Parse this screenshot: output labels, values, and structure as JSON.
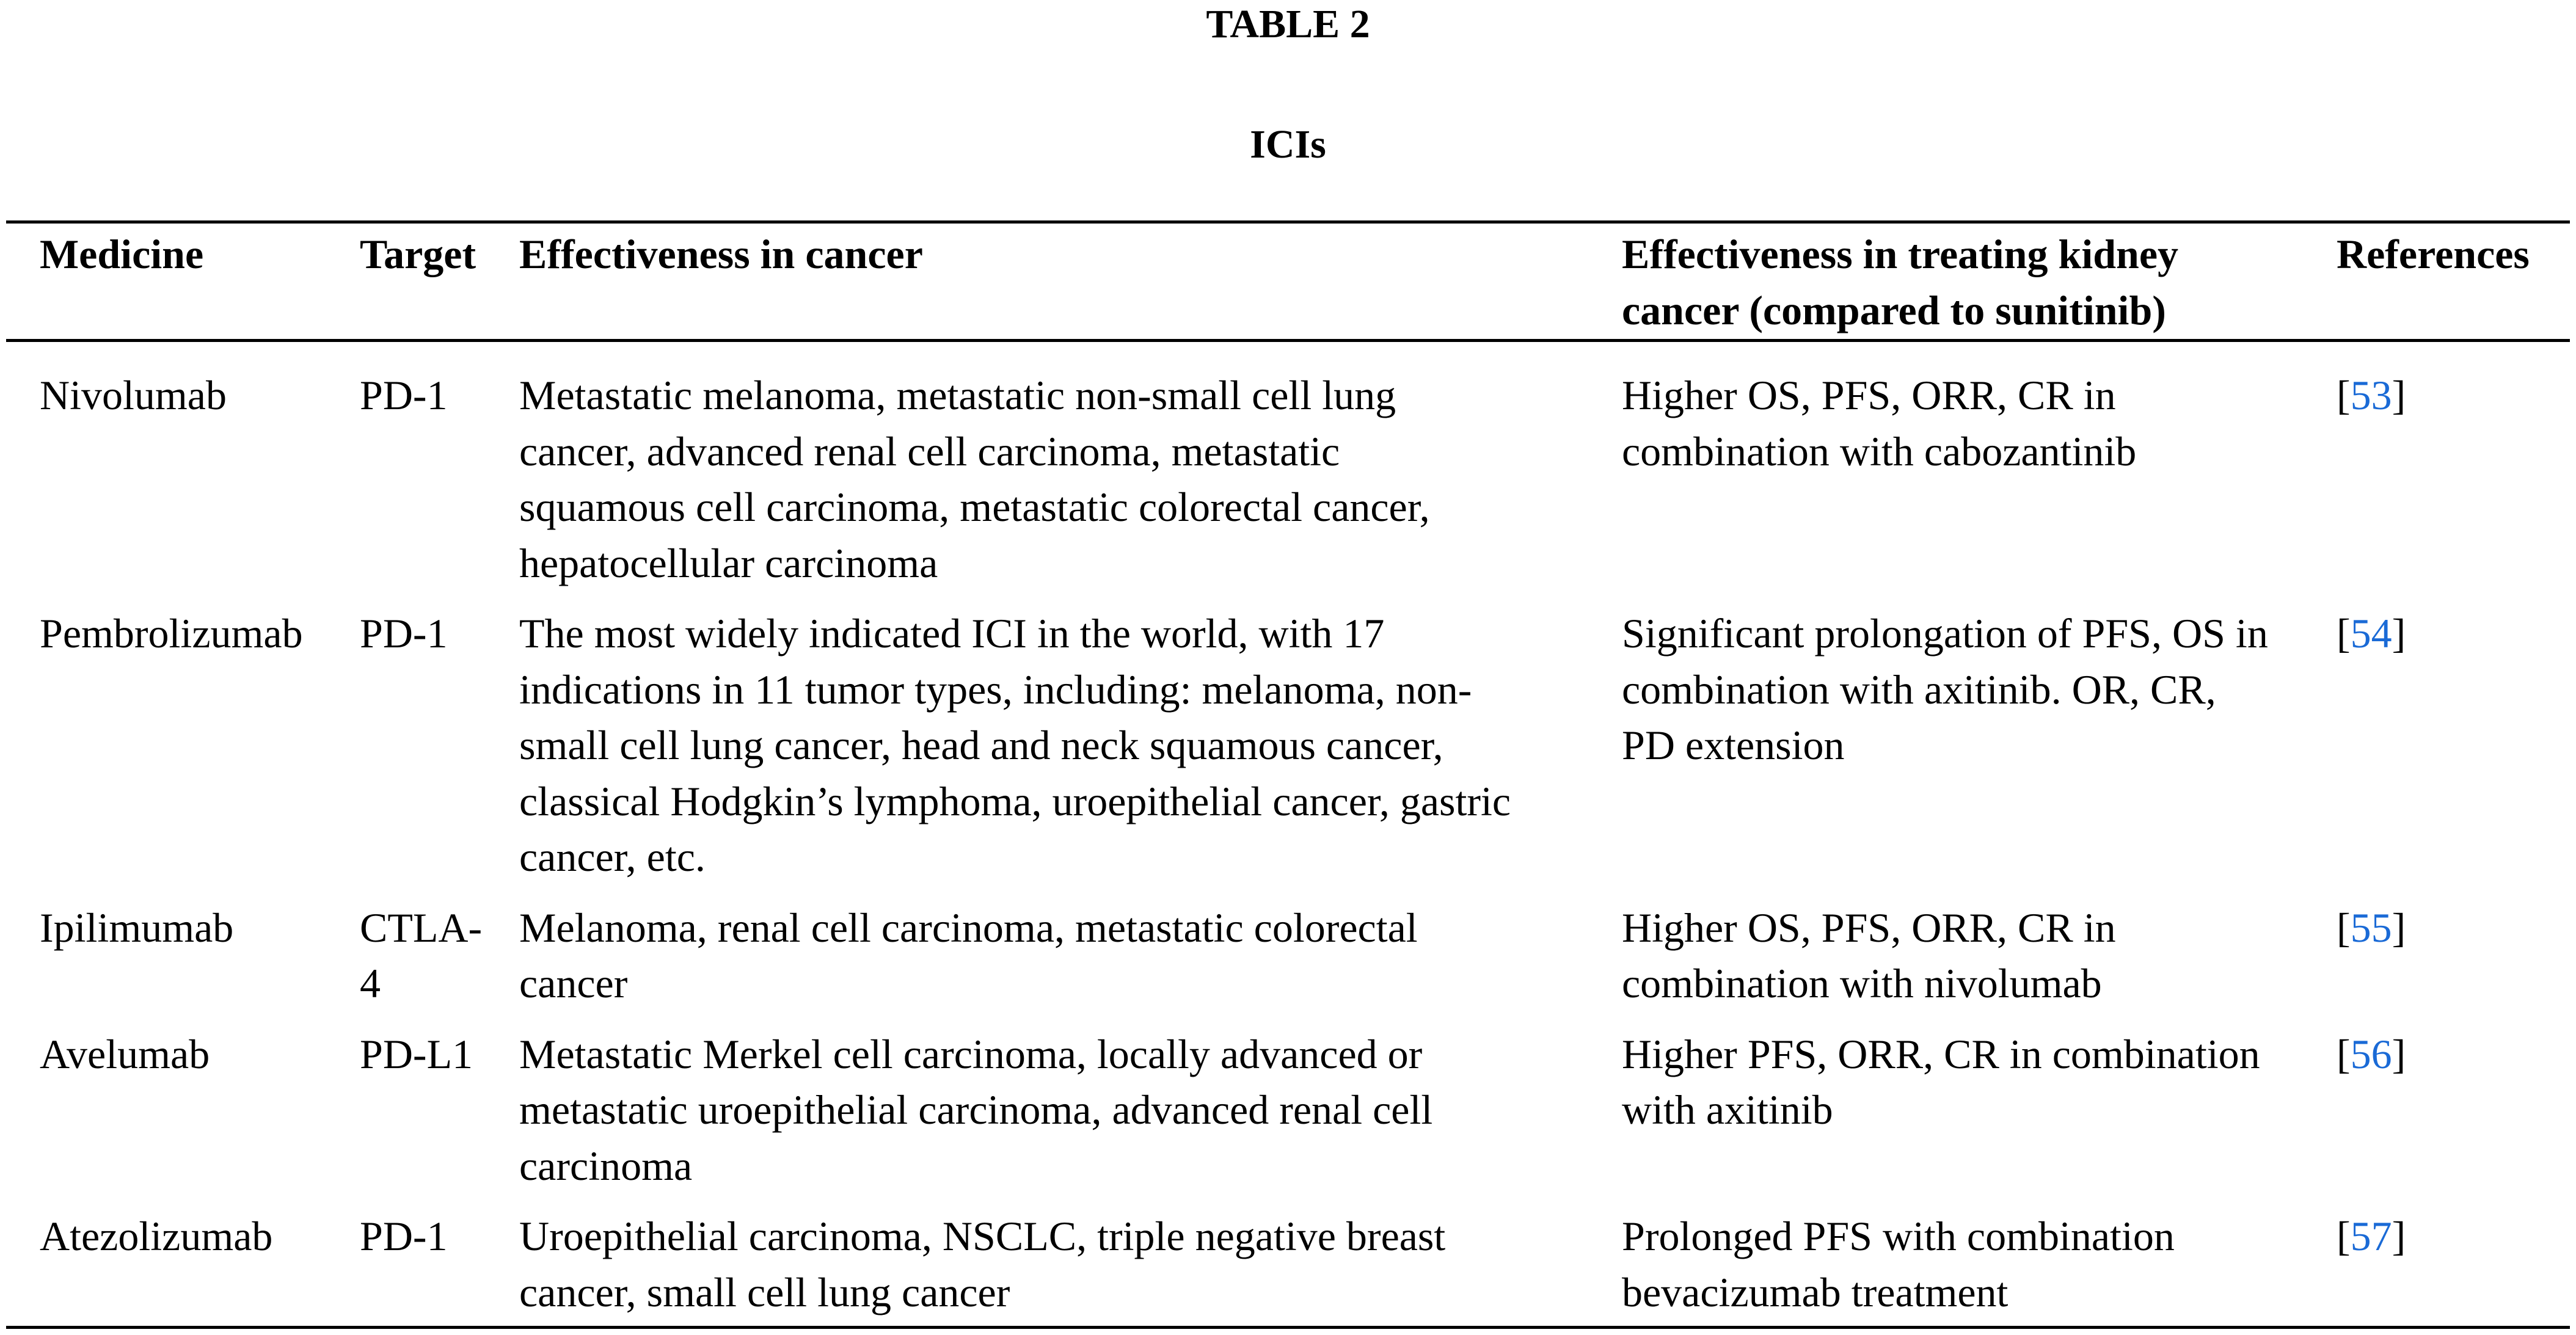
{
  "title": "TABLE 2",
  "subtitle": "ICIs",
  "colors": {
    "reference_link": "#1a6ad6"
  },
  "headers": {
    "medicine": "Medicine",
    "target": "Target",
    "effectiveness": "Effectiveness in cancer",
    "kidney": [
      "Effectiveness in treating kidney",
      "cancer (compared to sunitinib)"
    ],
    "references": "References"
  },
  "rows": [
    {
      "medicine": [
        "Nivolumab"
      ],
      "target": [
        "PD-1"
      ],
      "effectiveness": [
        "Metastatic melanoma, metastatic non-small cell lung",
        "cancer, advanced renal cell carcinoma, metastatic",
        "squamous cell carcinoma, metastatic colorectal cancer,",
        "hepatocellular carcinoma"
      ],
      "kidney": [
        "Higher OS, PFS, ORR, CR in",
        "combination with cabozantinib"
      ],
      "ref": "53"
    },
    {
      "medicine": [
        "Pembrolizumab"
      ],
      "target": [
        "PD-1"
      ],
      "effectiveness": [
        "The most widely indicated ICI in the world, with 17",
        "indications in 11 tumor types, including: melanoma, non-",
        "small cell lung cancer, head and neck squamous cancer,",
        "classical Hodgkin’s lymphoma, uroepithelial cancer, gastric",
        "cancer, etc."
      ],
      "kidney": [
        "Significant prolongation of PFS, OS in",
        "combination with axitinib. OR, CR,",
        "PD extension"
      ],
      "ref": "54"
    },
    {
      "medicine": [
        "Ipilimumab"
      ],
      "target": [
        "CTLA-",
        "4"
      ],
      "effectiveness": [
        "Melanoma, renal cell carcinoma, metastatic colorectal",
        "cancer"
      ],
      "kidney": [
        "Higher OS, PFS, ORR, CR in",
        "combination with nivolumab"
      ],
      "ref": "55"
    },
    {
      "medicine": [
        "Avelumab"
      ],
      "target": [
        "PD-L1"
      ],
      "effectiveness": [
        "Metastatic Merkel cell carcinoma, locally advanced or",
        "metastatic uroepithelial carcinoma, advanced renal cell",
        "carcinoma"
      ],
      "kidney": [
        "Higher PFS, ORR, CR in combination",
        "with axitinib"
      ],
      "ref": "56"
    },
    {
      "medicine": [
        "Atezolizumab"
      ],
      "target": [
        "PD-1"
      ],
      "effectiveness": [
        "Uroepithelial carcinoma, NSCLC, triple negative breast",
        "cancer, small cell lung cancer"
      ],
      "kidney": [
        "Prolonged PFS with combination",
        "bevacizumab treatment"
      ],
      "ref": "57"
    }
  ]
}
